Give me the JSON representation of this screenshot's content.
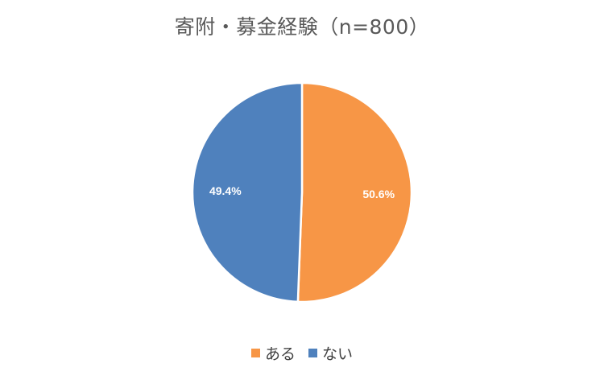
{
  "chart_data": {
    "type": "pie",
    "title": "寄附・募金経験（n=800）",
    "slices": [
      {
        "label": "ある",
        "value": 50.6,
        "display": "50.6%",
        "color": "#F79646"
      },
      {
        "label": "ない",
        "value": 49.4,
        "display": "49.4%",
        "color": "#4F81BD"
      }
    ],
    "legend_position": "bottom",
    "start_angle_deg": 0,
    "direction": "clockwise"
  }
}
